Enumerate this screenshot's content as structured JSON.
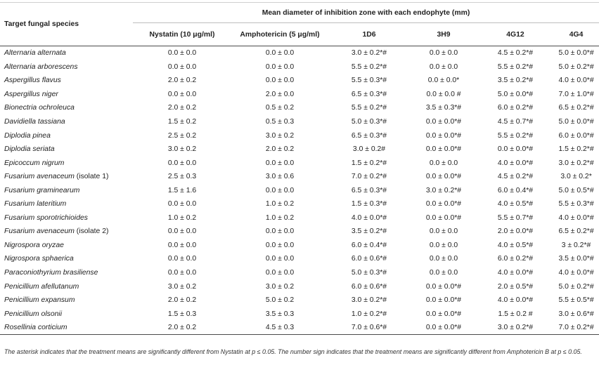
{
  "table": {
    "species_header": "Target fungal species",
    "group_header": "Mean diameter of inhibition zone with each endophyte (mm)",
    "columns": [
      "Nystatin (10 μg/ml)",
      "Amphotericin (5 μg/ml)",
      "1D6",
      "3H9",
      "4G12",
      "4G4"
    ],
    "rows": [
      {
        "species": "Alternaria alternata",
        "note": "",
        "values": [
          "0.0 ± 0.0",
          "0.0 ± 0.0",
          "3.0 ± 0.2*#",
          "0.0 ± 0.0",
          "4.5 ± 0.2*#",
          "5.0 ± 0.0*#"
        ]
      },
      {
        "species": "Alternaria arborescens",
        "note": "",
        "values": [
          "0.0 ± 0.0",
          "0.0 ± 0.0",
          "5.5 ± 0.2*#",
          "0.0 ± 0.0",
          "5.5 ± 0.2*#",
          "5.0 ± 0.2*#"
        ]
      },
      {
        "species": "Aspergillus flavus",
        "note": "",
        "values": [
          "2.0 ± 0.2",
          "0.0 ± 0.0",
          "5.5 ± 0.3*#",
          "0.0 ± 0.0*",
          "3.5 ± 0.2*#",
          "4.0 ± 0.0*#"
        ]
      },
      {
        "species": "Aspergillus niger",
        "note": "",
        "values": [
          "0.0 ± 0.0",
          "2.0 ± 0.0",
          "6.5 ± 0.3*#",
          "0.0 ± 0.0 #",
          "5.0 ± 0.0*#",
          "7.0 ± 1.0*#"
        ]
      },
      {
        "species": "Bionectria ochroleuca",
        "note": "",
        "values": [
          "2.0 ± 0.2",
          "0.5 ± 0.2",
          "5.5 ± 0.2*#",
          "3.5 ± 0.3*#",
          "6.0 ± 0.2*#",
          "6.5 ± 0.2*#"
        ]
      },
      {
        "species": "Davidiella tassiana",
        "note": "",
        "values": [
          "1.5 ± 0.2",
          "0.5 ± 0.3",
          "5.0 ± 0.3*#",
          "0.0 ± 0.0*#",
          "4.5 ± 0.7*#",
          "5.0 ± 0.0*#"
        ]
      },
      {
        "species": "Diplodia pinea",
        "note": "",
        "values": [
          "2.5 ± 0.2",
          "3.0 ± 0.2",
          "6.5 ± 0.3*#",
          "0.0 ± 0.0*#",
          "5.5 ± 0.2*#",
          "6.0 ± 0.0*#"
        ]
      },
      {
        "species": "Diplodia seriata",
        "note": "",
        "values": [
          "3.0 ± 0.2",
          "2.0 ± 0.2",
          "3.0 ± 0.2#",
          "0.0 ± 0.0*#",
          "0.0 ± 0.0*#",
          "1.5 ± 0.2*#"
        ]
      },
      {
        "species": "Epicoccum nigrum",
        "note": "",
        "values": [
          "0.0 ± 0.0",
          "0.0 ± 0.0",
          "1.5 ± 0.2*#",
          "0.0 ± 0.0",
          "4.0 ± 0.0*#",
          "3.0 ± 0.2*#"
        ]
      },
      {
        "species": "Fusarium avenaceum",
        "note": " (isolate 1)",
        "values": [
          "2.5 ± 0.3",
          "3.0 ± 0.6",
          "7.0 ± 0.2*#",
          "0.0 ± 0.0*#",
          "4.5 ± 0.2*#",
          "3.0 ± 0.2*"
        ]
      },
      {
        "species": "Fusarium graminearum",
        "note": "",
        "values": [
          "1.5 ± 1.6",
          "0.0 ± 0.0",
          "6.5 ± 0.3*#",
          "3.0 ± 0.2*#",
          "6.0 ± 0.4*#",
          "5.0 ± 0.5*#"
        ]
      },
      {
        "species": "Fusarium lateritium",
        "note": "",
        "values": [
          "0.0 ± 0.0",
          "1.0 ± 0.2",
          "1.5 ± 0.3*#",
          "0.0 ± 0.0*#",
          "4.0 ± 0.5*#",
          "5.5 ± 0.3*#"
        ]
      },
      {
        "species": "Fusarium sporotrichioides",
        "note": "",
        "values": [
          "1.0 ± 0.2",
          "1.0 ± 0.2",
          "4.0 ± 0.0*#",
          "0.0 ± 0.0*#",
          "5.5 ± 0.7*#",
          "4.0 ± 0.0*#"
        ]
      },
      {
        "species": "Fusarium avenaceum",
        "note": " (isolate 2)",
        "values": [
          "0.0 ± 0.0",
          "0.0 ± 0.0",
          "3.5 ± 0.2*#",
          "0.0 ± 0.0",
          "2.0 ± 0.0*#",
          "6.5 ± 0.2*#"
        ]
      },
      {
        "species": "Nigrospora oryzae",
        "note": "",
        "values": [
          "0.0 ± 0.0",
          "0.0 ± 0.0",
          "6.0 ± 0.4*#",
          "0.0 ± 0.0",
          "4.0 ± 0.5*#",
          "3 ± 0.2*#"
        ]
      },
      {
        "species": "Nigrospora sphaerica",
        "note": "",
        "values": [
          "0.0 ± 0.0",
          "0.0 ± 0.0",
          "6.0 ± 0.6*#",
          "0.0 ± 0.0",
          "6.0 ± 0.2*#",
          "3.5 ± 0.0*#"
        ]
      },
      {
        "species": "Paraconiothyrium brasiliense",
        "note": "",
        "values": [
          "0.0 ± 0.0",
          "0.0 ± 0.0",
          "5.0 ± 0.3*#",
          "0.0 ± 0.0",
          "4.0 ± 0.0*#",
          "4.0 ± 0.0*#"
        ]
      },
      {
        "species": "Penicillium afellutanum",
        "note": "",
        "values": [
          "3.0 ± 0.2",
          "3.0 ± 0.2",
          "6.0 ± 0.6*#",
          "0.0 ± 0.0*#",
          "2.0 ± 0.5*#",
          "5.0 ± 0.2*#"
        ]
      },
      {
        "species": "Penicillium expansum",
        "note": "",
        "values": [
          "2.0 ± 0.2",
          "5.0 ± 0.2",
          "3.0 ± 0.2*#",
          "0.0 ± 0.0*#",
          "4.0 ± 0.0*#",
          "5.5 ± 0.5*#"
        ]
      },
      {
        "species": "Penicillium olsonii",
        "note": "",
        "values": [
          "1.5 ± 0.3",
          "3.5 ± 0.3",
          "1.0 ± 0.2*#",
          "0.0 ± 0.0*#",
          "1.5 ± 0.2 #",
          "3.0 ± 0.6*#"
        ]
      },
      {
        "species": "Rosellinia corticium",
        "note": "",
        "values": [
          "2.0 ± 0.2",
          "4.5 ± 0.3",
          "7.0 ± 0.6*#",
          "0.0 ± 0.0*#",
          "3.0 ± 0.2*#",
          "7.0 ± 0.2*#"
        ]
      }
    ]
  },
  "footnote": "The asterisk indicates that the treatment means are significantly different from Nystatin at p ≤ 0.05. The number sign indicates that the treatment means are significantly different from Amphotericin B at p ≤ 0.05."
}
